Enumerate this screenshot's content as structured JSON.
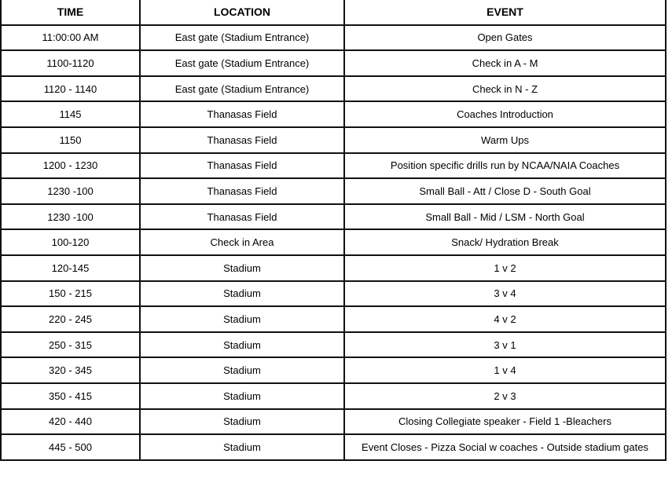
{
  "headers": {
    "time": "TIME",
    "location": "LOCATION",
    "event": "EVENT"
  },
  "rows": [
    {
      "time": "11:00:00 AM",
      "location": "East gate (Stadium Entrance)",
      "event": "Open Gates"
    },
    {
      "time": "1100-1120",
      "location": "East gate (Stadium Entrance)",
      "event": "Check in A - M"
    },
    {
      "time": "1120 - 1140",
      "location": "East gate (Stadium Entrance)",
      "event": "Check in N - Z"
    },
    {
      "time": "1145",
      "location": "Thanasas Field",
      "event": "Coaches Introduction"
    },
    {
      "time": "1150",
      "location": "Thanasas Field",
      "event": "Warm Ups"
    },
    {
      "time": "1200 - 1230",
      "location": "Thanasas Field",
      "event": "Position specific drills run by NCAA/NAIA Coaches"
    },
    {
      "time": "1230 -100",
      "location": "Thanasas Field",
      "event": "Small Ball - Att / Close D - South Goal"
    },
    {
      "time": "1230 -100",
      "location": "Thanasas Field",
      "event": "Small Ball - Mid / LSM - North Goal"
    },
    {
      "time": "100-120",
      "location": "Check in Area",
      "event": "Snack/ Hydration Break"
    },
    {
      "time": "120-145",
      "location": "Stadium",
      "event": "1 v 2"
    },
    {
      "time": "150 - 215",
      "location": "Stadium",
      "event": "3 v 4"
    },
    {
      "time": "220 - 245",
      "location": "Stadium",
      "event": "4 v 2"
    },
    {
      "time": "250 - 315",
      "location": "Stadium",
      "event": "3 v 1"
    },
    {
      "time": "320 - 345",
      "location": "Stadium",
      "event": "1 v 4"
    },
    {
      "time": "350 - 415",
      "location": "Stadium",
      "event": "2 v 3"
    },
    {
      "time": "420 - 440",
      "location": "Stadium",
      "event": "Closing Collegiate speaker - Field 1 -Bleachers"
    },
    {
      "time": "445 - 500",
      "location": "Stadium",
      "event": "Event Closes - Pizza Social w coaches - Outside stadium gates"
    }
  ]
}
